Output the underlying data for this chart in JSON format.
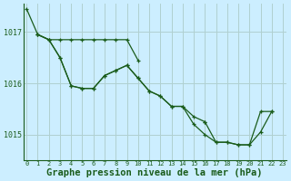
{
  "background_color": "#cceeff",
  "grid_color": "#b0d0d0",
  "line_color": "#1a5c1a",
  "xlabel": "Graphe pression niveau de la mer (hPa)",
  "xlabel_fontsize": 7.5,
  "ytick_values": [
    1015,
    1016,
    1017
  ],
  "ylim": [
    1014.5,
    1017.55
  ],
  "xlim": [
    -0.3,
    23.3
  ],
  "figsize": [
    3.2,
    2.0
  ],
  "dpi": 100,
  "series": [
    {
      "x": [
        0,
        1,
        2,
        3,
        4,
        5,
        6,
        7,
        8,
        9,
        10,
        11
      ],
      "y": [
        1017.45,
        1016.95,
        1016.85,
        1016.85,
        1016.85,
        1016.85,
        1016.85,
        1016.85,
        1016.85,
        1016.85,
        1016.45,
        1016.1
      ]
    },
    {
      "x": [
        1,
        2,
        3,
        4,
        5,
        6,
        7,
        8,
        9,
        10,
        11,
        12,
        13,
        14,
        15,
        16
      ],
      "y": [
        1016.95,
        1016.85,
        1016.5,
        1015.95,
        1015.9,
        1015.9,
        1016.15,
        1016.25,
        1016.35,
        1016.1,
        1015.85,
        1015.75,
        1015.55,
        1015.55,
        1015.35,
        1015.25
      ]
    },
    {
      "x": [
        3,
        4,
        5,
        6,
        7,
        8,
        9,
        10,
        11,
        12,
        13,
        14,
        15,
        16,
        17,
        18,
        19,
        20,
        21,
        22
      ],
      "y": [
        1016.5,
        1015.95,
        1015.9,
        1015.9,
        1016.15,
        1016.25,
        1016.35,
        1016.1,
        1015.85,
        1015.75,
        1015.55,
        1015.55,
        1015.2,
        1015.0,
        1014.85,
        1014.85,
        1014.8,
        1014.8,
        1015.05,
        1015.45
      ]
    },
    {
      "x": [
        16,
        17,
        18,
        19,
        20,
        21
      ],
      "y": [
        1015.25,
        1014.85,
        1014.85,
        1014.8,
        1014.8,
        1015.05
      ]
    }
  ]
}
